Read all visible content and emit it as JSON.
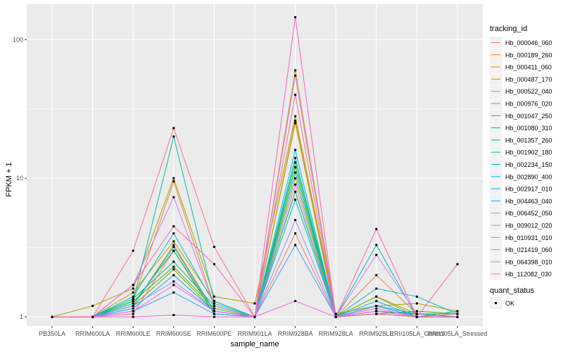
{
  "chart_data": {
    "type": "line",
    "xlabel": "sample_name",
    "ylabel": "FPKM + 1",
    "y_scale": "log10",
    "ylim": [
      0.86,
      180
    ],
    "y_ticks": [
      1,
      10,
      100
    ],
    "y_tick_labels": [
      "1",
      "10",
      "100"
    ],
    "grid": true,
    "legend_position": "right",
    "categories": [
      "PB350LA",
      "RRIM600LA",
      "RRIM600LE",
      "RRIM600SE",
      "RRIM600PE",
      "RRIM901LA",
      "RRIM928BA",
      "RRIM928LA",
      "RRIM928LE",
      "RRII105LA_Control",
      "RRII105LA_Stressed"
    ],
    "legend_title": "tracking_id",
    "series": [
      {
        "name": "Hb_000046_060",
        "color": "#F8766D",
        "values": [
          1.0,
          1.0,
          1.05,
          3.0,
          1.1,
          1.0,
          4.0,
          1.0,
          1.1,
          1.05,
          1.0
        ]
      },
      {
        "name": "Hb_000189_260",
        "color": "#EA8331",
        "values": [
          1.0,
          1.0,
          1.3,
          9.5,
          1.2,
          1.0,
          26.0,
          1.0,
          2.0,
          1.05,
          1.0
        ]
      },
      {
        "name": "Hb_000411_060",
        "color": "#D89000",
        "values": [
          1.0,
          1.0,
          1.2,
          3.3,
          1.1,
          1.0,
          60.0,
          1.05,
          1.2,
          1.0,
          1.05
        ]
      },
      {
        "name": "Hb_000487_170",
        "color": "#C09B00",
        "values": [
          1.0,
          1.0,
          1.5,
          3.5,
          1.3,
          1.0,
          25.0,
          1.0,
          1.4,
          1.0,
          1.0
        ]
      },
      {
        "name": "Hb_000522_040",
        "color": "#A3A500",
        "values": [
          1.0,
          1.2,
          1.6,
          10.0,
          1.4,
          1.25,
          28.0,
          1.05,
          1.2,
          1.25,
          1.1
        ]
      },
      {
        "name": "Hb_000976_020",
        "color": "#7CAE00",
        "values": [
          1.0,
          1.0,
          1.2,
          2.2,
          1.1,
          1.0,
          10.0,
          1.0,
          1.4,
          1.05,
          1.05
        ]
      },
      {
        "name": "Hb_001047_250",
        "color": "#39B600",
        "values": [
          1.0,
          1.0,
          1.3,
          2.3,
          1.15,
          1.0,
          12.0,
          1.0,
          1.05,
          1.1,
          1.05
        ]
      },
      {
        "name": "Hb_001080_310",
        "color": "#00BB4E",
        "values": [
          1.0,
          1.0,
          1.25,
          3.0,
          1.05,
          1.0,
          8.0,
          1.0,
          1.05,
          1.0,
          1.0
        ]
      },
      {
        "name": "Hb_001357_260",
        "color": "#00BF7D",
        "values": [
          1.0,
          1.0,
          1.35,
          2.5,
          1.2,
          1.0,
          13.0,
          1.0,
          1.1,
          1.05,
          1.0
        ]
      },
      {
        "name": "Hb_001902_180",
        "color": "#00C1A3",
        "values": [
          1.0,
          1.0,
          1.3,
          20.0,
          1.3,
          1.0,
          14.0,
          1.0,
          3.3,
          1.0,
          1.1
        ]
      },
      {
        "name": "Hb_002234_150",
        "color": "#00BFC4",
        "values": [
          1.0,
          1.0,
          1.4,
          4.0,
          1.25,
          1.0,
          7.0,
          1.0,
          1.2,
          1.05,
          1.05
        ]
      },
      {
        "name": "Hb_002890_400",
        "color": "#00BAE0",
        "values": [
          1.0,
          1.0,
          1.2,
          3.2,
          1.1,
          1.0,
          16.0,
          1.0,
          1.6,
          1.4,
          1.05
        ]
      },
      {
        "name": "Hb_002917_010",
        "color": "#00B0F6",
        "values": [
          1.0,
          1.0,
          1.15,
          2.0,
          1.1,
          1.0,
          11.0,
          1.0,
          1.3,
          1.0,
          1.0
        ]
      },
      {
        "name": "Hb_004463_040",
        "color": "#35A2FF",
        "values": [
          1.0,
          1.0,
          1.1,
          1.5,
          1.05,
          1.0,
          3.3,
          1.0,
          1.2,
          1.0,
          1.0
        ]
      },
      {
        "name": "Hb_006452_050",
        "color": "#9590FF",
        "values": [
          1.0,
          1.0,
          1.2,
          1.8,
          1.1,
          1.0,
          5.0,
          1.0,
          1.1,
          1.0,
          1.0
        ]
      },
      {
        "name": "Hb_009012_020",
        "color": "#C77CFF",
        "values": [
          1.0,
          1.0,
          1.7,
          7.3,
          1.2,
          1.0,
          55.0,
          1.0,
          2.8,
          1.05,
          1.05
        ]
      },
      {
        "name": "Hb_010931_010",
        "color": "#E76BF3",
        "values": [
          1.0,
          1.0,
          1.1,
          1.7,
          1.1,
          1.0,
          9.0,
          1.0,
          1.1,
          1.0,
          1.0
        ]
      },
      {
        "name": "Hb_021419_060",
        "color": "#FA62DB",
        "values": [
          1.0,
          1.0,
          1.0,
          1.03,
          1.0,
          1.0,
          1.3,
          1.0,
          1.15,
          1.0,
          1.0
        ]
      },
      {
        "name": "Hb_064398_010",
        "color": "#FF62BC",
        "values": [
          1.0,
          1.0,
          1.7,
          4.5,
          2.4,
          1.0,
          145.0,
          1.0,
          4.3,
          1.0,
          1.0
        ]
      },
      {
        "name": "Hb_112082_030",
        "color": "#FF6C91",
        "values": [
          1.0,
          1.0,
          3.0,
          23.0,
          3.2,
          1.0,
          40.0,
          1.0,
          1.05,
          1.0,
          2.4
        ]
      }
    ],
    "quant_status_legend": {
      "title": "quant_status",
      "entries": [
        "OK"
      ]
    }
  }
}
